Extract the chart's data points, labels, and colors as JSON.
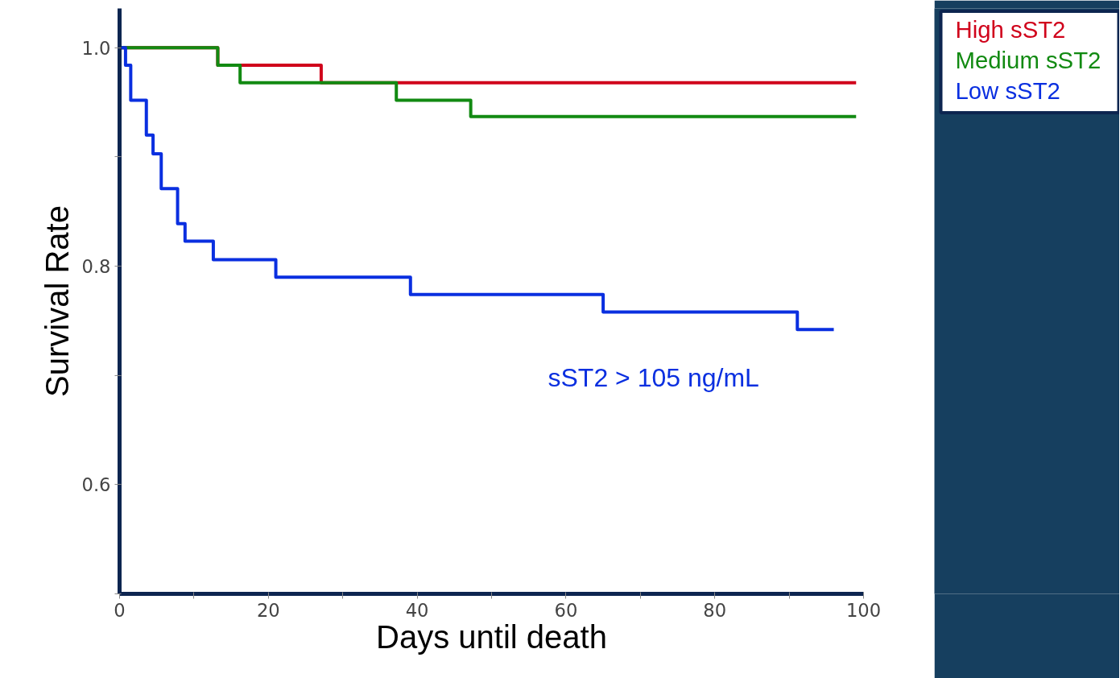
{
  "chart_data": {
    "type": "step",
    "xlabel": "Days until death",
    "ylabel": "Survival Rate",
    "xlim": [
      0,
      100
    ],
    "ylim": [
      0.5,
      1.036
    ],
    "xticks": [
      0,
      {
        "value": 10,
        "label": null
      },
      20,
      {
        "value": 30,
        "label": null
      },
      40,
      {
        "value": 50,
        "label": null
      },
      60,
      {
        "value": 70,
        "label": null
      },
      80,
      {
        "value": 90,
        "label": null
      },
      100
    ],
    "yticks": [
      {
        "value": 0.5,
        "label": null
      },
      0.6,
      {
        "value": 0.7,
        "label": null
      },
      0.8,
      {
        "value": 0.9,
        "label": null
      },
      {
        "value": 1.0,
        "label": "1.0"
      }
    ],
    "series": [
      {
        "name": "High sST2",
        "color": "#d0021b",
        "x": [
          0,
          13.2,
          27.1,
          99
        ],
        "values": [
          1.0,
          0.984,
          0.968,
          0.968
        ]
      },
      {
        "name": "Medium sST2",
        "color": "#128a12",
        "x": [
          0,
          13.2,
          16.2,
          37.2,
          47.2,
          99
        ],
        "values": [
          1.0,
          0.984,
          0.968,
          0.952,
          0.937,
          0.937
        ]
      },
      {
        "name": "Low sST2",
        "color": "#0a2fe0",
        "x": [
          0,
          0.8,
          1.5,
          3.6,
          4.5,
          5.6,
          7.8,
          8.8,
          12.6,
          21,
          39.1,
          65,
          91.1,
          96
        ],
        "values": [
          1.0,
          0.984,
          0.952,
          0.92,
          0.903,
          0.871,
          0.839,
          0.823,
          0.806,
          0.79,
          0.774,
          0.758,
          0.742,
          0.742
        ]
      }
    ],
    "annotations": [
      "sST2 > 105 ng/mL"
    ],
    "grid": false,
    "line_style": "solid"
  }
}
